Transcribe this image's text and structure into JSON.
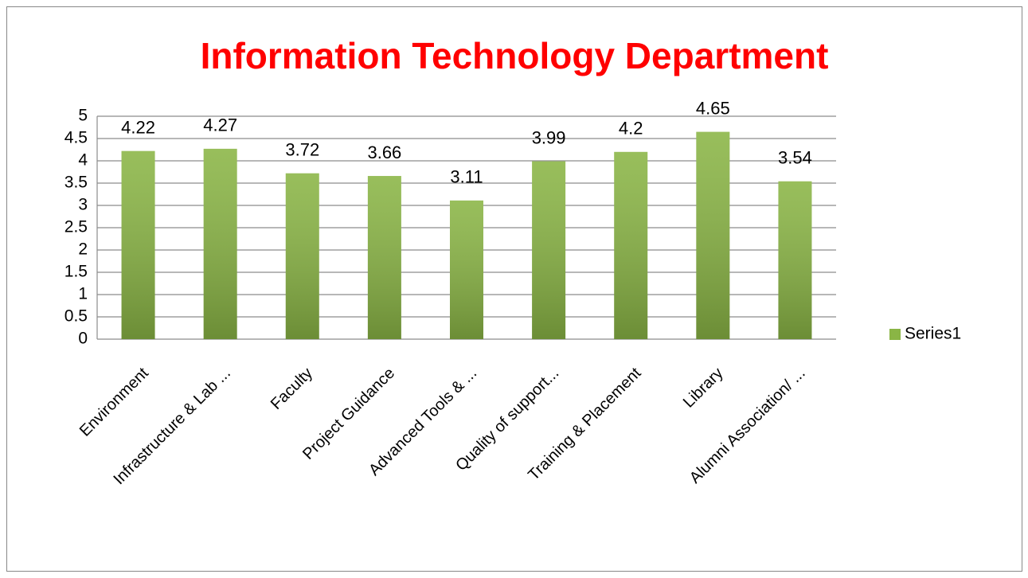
{
  "chart_data": {
    "type": "bar",
    "title": "Information Technology Department",
    "categories": [
      "Environment",
      "Infrastructure & Lab ...",
      "Faculty",
      "Project Guidance",
      "Advanced Tools & ...",
      "Quality of support...",
      "Training & Placement",
      "Library",
      "Alumni Association/ ..."
    ],
    "series": [
      {
        "name": "Series1",
        "color": "#8ab545",
        "values": [
          4.22,
          4.27,
          3.72,
          3.66,
          3.11,
          3.99,
          4.2,
          4.65,
          3.54
        ]
      }
    ],
    "ylim": [
      0,
      5
    ],
    "yticks": [
      0,
      0.5,
      1,
      1.5,
      2,
      2.5,
      3,
      3.5,
      4,
      4.5,
      5
    ],
    "grid": true,
    "legend": "right"
  }
}
